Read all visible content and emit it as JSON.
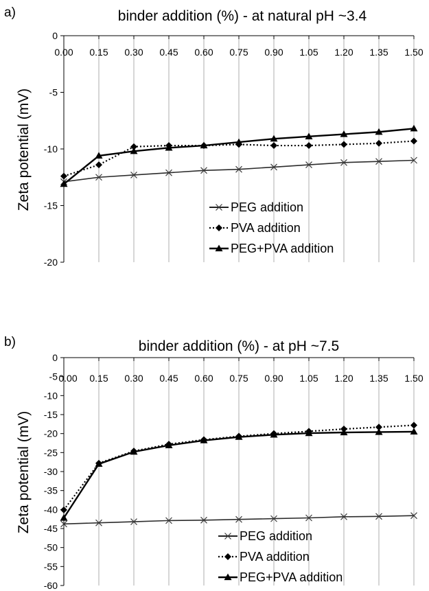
{
  "chart_data": [
    {
      "type": "line",
      "panel_label": "a)",
      "title": "binder addition (%) - at natural pH ~3.4",
      "ylabel": "Zeta potential (mV)",
      "xlabel": "",
      "x": [
        0.0,
        0.15,
        0.3,
        0.45,
        0.6,
        0.75,
        0.9,
        1.05,
        1.2,
        1.35,
        1.5
      ],
      "x_tick_labels": [
        "0.00",
        "0.15",
        "0.30",
        "0.45",
        "0.60",
        "0.75",
        "0.90",
        "1.05",
        "1.20",
        "1.35",
        "1.50"
      ],
      "y_tick_values": [
        0,
        -5,
        -10,
        -15,
        -20
      ],
      "y_tick_labels": [
        "0",
        "-5",
        "-10",
        "-15",
        "-20"
      ],
      "ylim": [
        -20,
        0
      ],
      "xlim": [
        0,
        1.5
      ],
      "x_axis_position": "top",
      "grid": "vertical",
      "legend_position": "lower-right",
      "series": [
        {
          "name": "PEG addition",
          "marker": "x",
          "line": "solid",
          "values": [
            -12.9,
            -12.5,
            -12.3,
            -12.1,
            -11.9,
            -11.8,
            -11.6,
            -11.4,
            -11.2,
            -11.1,
            -11.0
          ]
        },
        {
          "name": "PVA addition",
          "marker": "diamond",
          "line": "dotted",
          "values": [
            -12.4,
            -11.4,
            -9.8,
            -9.7,
            -9.7,
            -9.6,
            -9.7,
            -9.7,
            -9.6,
            -9.5,
            -9.3
          ]
        },
        {
          "name": "PEG+PVA addition",
          "marker": "triangle",
          "line": "solid",
          "values": [
            -13.1,
            -10.6,
            -10.2,
            -9.9,
            -9.7,
            -9.4,
            -9.1,
            -8.9,
            -8.7,
            -8.5,
            -8.2
          ]
        }
      ]
    },
    {
      "type": "line",
      "panel_label": "b)",
      "title": "binder addition (%) - at pH ~7.5",
      "ylabel": "Zeta potential (mV)",
      "xlabel": "",
      "x": [
        0.0,
        0.15,
        0.3,
        0.45,
        0.6,
        0.75,
        0.9,
        1.05,
        1.2,
        1.35,
        1.5
      ],
      "x_tick_labels": [
        "0.00",
        "0.15",
        "0.30",
        "0.45",
        "0.60",
        "0.75",
        "0.90",
        "1.05",
        "1.20",
        "1.35",
        "1.50"
      ],
      "y_tick_values": [
        0,
        -5,
        -10,
        -15,
        -20,
        -25,
        -30,
        -35,
        -40,
        -45,
        -50,
        -55,
        -60
      ],
      "y_tick_labels": [
        "0",
        "-5",
        "-10",
        "-15",
        "-20",
        "-25",
        "-30",
        "-35",
        "-40",
        "-45",
        "-50",
        "-55",
        "-60"
      ],
      "ylim": [
        -60,
        0
      ],
      "xlim": [
        0,
        1.5
      ],
      "x_axis_position": "top",
      "grid": "vertical",
      "legend_position": "lower-right",
      "series": [
        {
          "name": "PEG addition",
          "marker": "x",
          "line": "solid",
          "values": [
            -43.8,
            -43.5,
            -43.2,
            -42.9,
            -42.8,
            -42.6,
            -42.4,
            -42.2,
            -41.9,
            -41.8,
            -41.6
          ]
        },
        {
          "name": "PVA addition",
          "marker": "diamond",
          "line": "dotted",
          "values": [
            -40.1,
            -27.8,
            -24.6,
            -22.8,
            -21.6,
            -20.7,
            -20.0,
            -19.4,
            -18.8,
            -18.3,
            -17.8
          ]
        },
        {
          "name": "PEG+PVA addition",
          "marker": "triangle",
          "line": "solid",
          "values": [
            -42.2,
            -28.0,
            -24.8,
            -23.1,
            -21.8,
            -20.9,
            -20.3,
            -19.9,
            -19.7,
            -19.6,
            -19.5
          ]
        }
      ]
    }
  ]
}
